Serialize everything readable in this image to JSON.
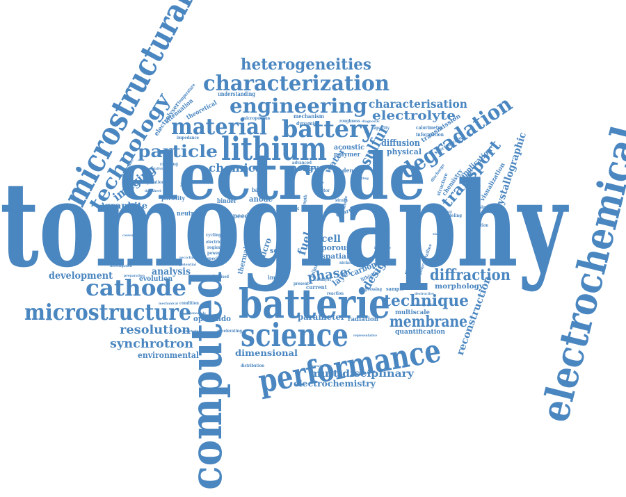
{
  "style": {
    "color": "#4a86c0"
  },
  "words": {
    "tomography": "tomography",
    "electrode": "electrode",
    "electrochemical": "electrochemical",
    "computed": "computed",
    "microstructural": "microstructural",
    "batterie": "batterie",
    "lithium": "lithium",
    "performance": "performance",
    "science": "science",
    "cathode": "cathode",
    "microstructure": "microstructure",
    "battery": "battery",
    "material": "material",
    "characterization": "characterization",
    "heterogeneities": "heterogeneities",
    "engineering": "engineering",
    "degradation": "degradation",
    "technology": "technology",
    "particle": "particle",
    "membrane": "membrane",
    "technique": "technique",
    "diffraction": "diffraction",
    "transport": "transport",
    "sulfur": "sulfur",
    "electrolyte": "electrolyte",
    "characterisation": "characterisation",
    "synchrotron": "synchrotron",
    "resolution": "resolution",
    "chemical": "chemical",
    "imaging": "imaging",
    "phase": "phase",
    "reconstruction": "reconstruction",
    "crystallographic": "crystallographic",
    "multidisciplinary": "multidisciplinary",
    "electrochemistry": "electrochemistry",
    "environmental": "environmental",
    "development": "development",
    "analysis": "analysis",
    "graphite": "graphite",
    "design": "design",
    "dimensional": "dimensional",
    "parameter": "parameter",
    "morphology": "morphology",
    "cell": "cell",
    "porous": "porous",
    "spatial": "spatial",
    "energy": "energy",
    "fuel": "fuel",
    "water": "water",
    "carbon": "carbon",
    "layer": "layer",
    "operando": "operando",
    "evolution": "evolution",
    "diffusion": "diffusion",
    "physical": "physical",
    "mechanism": "mechanism",
    "acoustic": "acoustic",
    "polymer": "polymer",
    "application": "application",
    "chemistry": "chemistry",
    "visualization": "visualization",
    "transmission": "transmission",
    "micro": "micro",
    "quantification": "quantification",
    "radiation": "radiation",
    "multiscale": "multiscale",
    "sample": "sample",
    "solid": "solid",
    "thermal": "thermal",
    "anode": "anode",
    "binder": "binder",
    "based": "based",
    "speed": "speed",
    "neutron": "neutron",
    "porosity": "porosity",
    "crack": "crack",
    "image": "image",
    "current": "current",
    "density": "density",
    "charge": "charge",
    "theoretical": "theoretical",
    "attenuation": "attenuation",
    "electrolyser": "electrolyser",
    "understanding": "understanding",
    "dynamic": "dynamic",
    "calorimetry": "calorimetry",
    "information": "information",
    "capacity": "capacity",
    "roughness": "roughness",
    "spectroscopy": "spectroscopy",
    "modeling": "modeling",
    "emission": "emission",
    "microporous": "microporous",
    "temperature": "temperature",
    "composite": "composite",
    "zirconia": "zirconia",
    "impedance": "impedance",
    "cracking": "cracking",
    "advanced": "advanced",
    "operation": "operation",
    "condition": "condition",
    "accelerating": "accelerating",
    "distribution": "distribution",
    "fluidised": "fluidised",
    "lithiation": "lithiation",
    "polycrystalline": "polycrystalline",
    "morphological": "morphological",
    "structure": "structure",
    "discharge": "discharge",
    "limitation": "limitation",
    "electric": "electric",
    "cycling": "cycling",
    "region": "region",
    "power": "power",
    "specific": "specific",
    "strain": "strain",
    "volume": "volume",
    "factor": "factor",
    "failure": "failure",
    "nickel": "nickel",
    "catalyst": "catalyst",
    "present": "present",
    "pressing": "pressing",
    "reaction": "reaction",
    "length": "length",
    "stress": "stress",
    "coating": "coating",
    "metallurgy": "metallurgy",
    "preparation": "preparation",
    "investigation": "investigation",
    "mechanical": "mechanical",
    "representative": "representative",
    "tomographic": "tomographic",
    "significant": "significant",
    "destructive": "destructive",
    "characteristic": "characteristic",
    "datasheet": "datasheet",
    "conventional": "conventional",
    "manufacturing": "manufacturing",
    "nanoscale": "nanoscale",
    "potential": "potential",
    "recycling": "recycling",
    "observed": "observed",
    "device": "device",
    "diagnostic": "diagnostic",
    "interface": "interface",
    "silicon": "silicon",
    "stability": "stability"
  }
}
